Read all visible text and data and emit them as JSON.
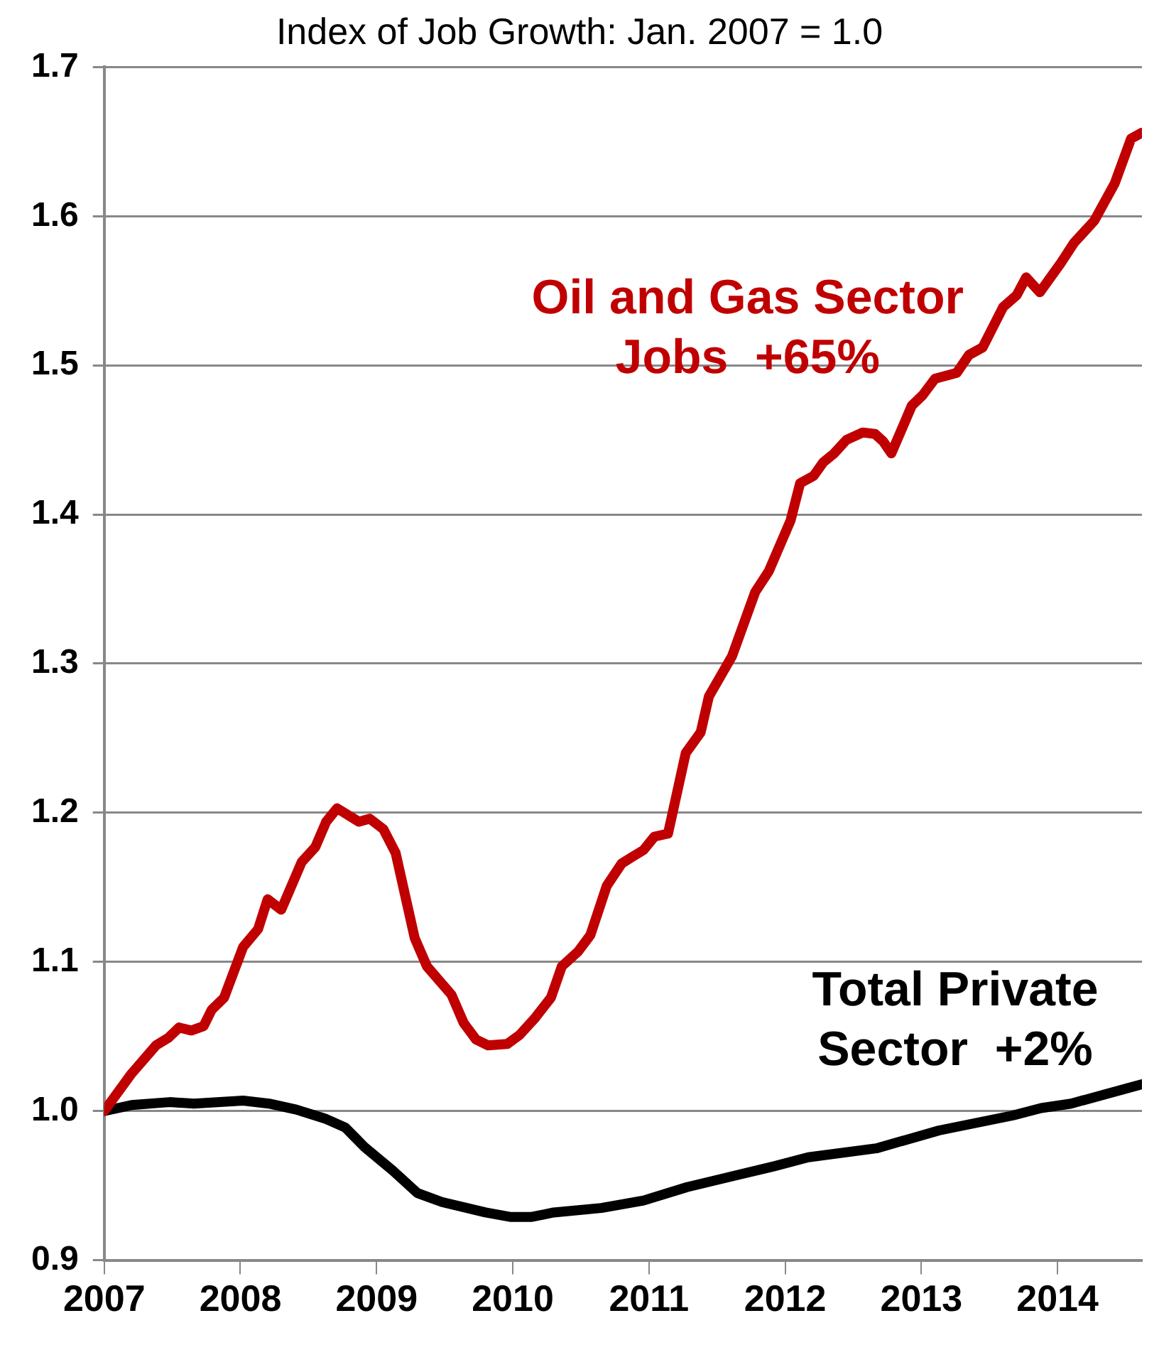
{
  "chart_data": {
    "type": "line",
    "title": "Index of Job Growth: Jan. 2007 = 1.0",
    "xlim": [
      2007,
      2014.62
    ],
    "xticks": [
      2007,
      2008,
      2009,
      2010,
      2011,
      2012,
      2013,
      2014
    ],
    "ylim": [
      0.9,
      1.7
    ],
    "yticks": [
      0.9,
      {
        "value": 1.0,
        "label": "1.0"
      },
      1.1,
      1.2,
      1.3,
      1.4,
      1.5,
      1.6,
      1.7
    ],
    "grid": "y",
    "legend": false,
    "marker": "none",
    "line_style": "solid",
    "series": [
      {
        "name": "Oil and Gas Sector Jobs  +65%",
        "color": "#c00000",
        "x": [
          2007.0,
          2007.2,
          2007.38,
          2007.47,
          2007.55,
          2007.64,
          2007.73,
          2007.79,
          2007.88,
          2008.02,
          2008.13,
          2008.2,
          2008.3,
          2008.45,
          2008.55,
          2008.63,
          2008.71,
          2008.87,
          2008.95,
          2009.05,
          2009.14,
          2009.28,
          2009.37,
          2009.55,
          2009.64,
          2009.73,
          2009.82,
          2009.96,
          2010.05,
          2010.16,
          2010.28,
          2010.36,
          2010.48,
          2010.57,
          2010.69,
          2010.8,
          2010.87,
          2010.96,
          2011.04,
          2011.14,
          2011.27,
          2011.38,
          2011.44,
          2011.61,
          2011.78,
          2011.88,
          2012.04,
          2012.11,
          2012.21,
          2012.28,
          2012.36,
          2012.45,
          2012.57,
          2012.66,
          2012.72,
          2012.78,
          2012.93,
          2013.01,
          2013.1,
          2013.26,
          2013.35,
          2013.45,
          2013.6,
          2013.7,
          2013.77,
          2013.87,
          2014.02,
          2014.12,
          2014.27,
          2014.42,
          2014.54,
          2014.62
        ],
        "values": [
          1.0,
          1.025,
          1.044,
          1.049,
          1.056,
          1.054,
          1.057,
          1.068,
          1.076,
          1.11,
          1.122,
          1.142,
          1.135,
          1.167,
          1.177,
          1.194,
          1.203,
          1.194,
          1.196,
          1.189,
          1.173,
          1.116,
          1.097,
          1.078,
          1.059,
          1.048,
          1.044,
          1.045,
          1.051,
          1.062,
          1.076,
          1.097,
          1.107,
          1.118,
          1.151,
          1.166,
          1.17,
          1.175,
          1.184,
          1.186,
          1.24,
          1.254,
          1.278,
          1.305,
          1.348,
          1.362,
          1.396,
          1.421,
          1.426,
          1.435,
          1.441,
          1.45,
          1.455,
          1.454,
          1.449,
          1.441,
          1.473,
          1.48,
          1.491,
          1.495,
          1.507,
          1.512,
          1.539,
          1.547,
          1.559,
          1.549,
          1.568,
          1.582,
          1.597,
          1.622,
          1.652,
          1.656
        ]
      },
      {
        "name": "Total Private Sector  +2%",
        "color": "#000000",
        "x": [
          2007.0,
          2007.2,
          2007.48,
          2007.66,
          2008.02,
          2008.21,
          2008.41,
          2008.62,
          2008.77,
          2008.91,
          2009.12,
          2009.3,
          2009.48,
          2009.8,
          2009.98,
          2010.14,
          2010.3,
          2010.65,
          2010.96,
          2011.28,
          2011.6,
          2011.92,
          2012.17,
          2012.67,
          2013.13,
          2013.67,
          2013.88,
          2014.1,
          2014.62
        ],
        "values": [
          1.0,
          1.004,
          1.006,
          1.005,
          1.007,
          1.005,
          1.001,
          0.995,
          0.989,
          0.976,
          0.96,
          0.945,
          0.939,
          0.932,
          0.929,
          0.929,
          0.932,
          0.935,
          0.94,
          0.949,
          0.956,
          0.963,
          0.969,
          0.975,
          0.987,
          0.997,
          1.002,
          1.005,
          1.018
        ]
      }
    ]
  }
}
